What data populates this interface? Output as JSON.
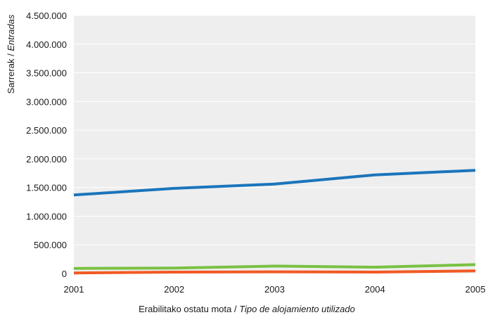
{
  "chart_data": {
    "type": "line",
    "x": [
      "2001",
      "2002",
      "2003",
      "2004",
      "2005"
    ],
    "xlabel": "Erabilitako ostatu mota",
    "xlabel_italic": "Tipo de alojamiento utilizado",
    "ylabel": "Sarrerak",
    "ylabel_italic": "Entradas",
    "ylim": [
      0,
      4500000
    ],
    "yticks": [
      0,
      500000,
      1000000,
      1500000,
      2000000,
      2500000,
      3000000,
      3500000,
      4000000,
      4500000
    ],
    "ytick_labels": [
      "0",
      "500.000",
      "1.000.000",
      "1.500.000",
      "2.000.000",
      "2.500.000",
      "3.000.000",
      "3.500.000",
      "4.000.000",
      "4.500.000"
    ],
    "grid": true,
    "series": [
      {
        "color": "#1b75bb",
        "values": [
          1370000,
          1485000,
          1560000,
          1720000,
          1800000
        ]
      },
      {
        "color": "#7ac143",
        "values": [
          90000,
          95000,
          130000,
          110000,
          155000
        ]
      },
      {
        "color": "#f15a24",
        "values": [
          10000,
          25000,
          30000,
          25000,
          45000
        ]
      }
    ],
    "colors": {
      "plot_background": "#eeeeee",
      "gridline": "#ffffff"
    }
  }
}
